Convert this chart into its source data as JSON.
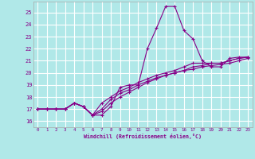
{
  "xlabel": "Windchill (Refroidissement éolien,°C)",
  "bg_color": "#b0e8e8",
  "grid_color": "#ffffff",
  "line_color": "#880088",
  "x_ticks": [
    0,
    1,
    2,
    3,
    4,
    5,
    6,
    7,
    8,
    9,
    10,
    11,
    12,
    13,
    14,
    15,
    16,
    17,
    18,
    19,
    20,
    21,
    22,
    23
  ],
  "y_ticks": [
    16,
    17,
    18,
    19,
    20,
    21,
    22,
    23,
    24,
    25
  ],
  "ylim": [
    15.5,
    25.9
  ],
  "xlim": [
    -0.5,
    23.5
  ],
  "series": [
    [
      17.0,
      17.0,
      17.0,
      17.0,
      17.5,
      17.2,
      16.5,
      16.5,
      17.2,
      18.8,
      19.0,
      19.0,
      22.0,
      23.7,
      25.5,
      25.5,
      23.5,
      22.8,
      21.0,
      20.5,
      20.5,
      21.2,
      21.3,
      21.3
    ],
    [
      17.0,
      17.0,
      17.0,
      17.0,
      17.5,
      17.2,
      16.5,
      17.5,
      18.0,
      18.5,
      18.8,
      19.2,
      19.5,
      19.8,
      20.0,
      20.2,
      20.5,
      20.8,
      20.8,
      20.8,
      20.8,
      21.0,
      21.2,
      21.3
    ],
    [
      17.0,
      17.0,
      17.0,
      17.0,
      17.5,
      17.2,
      16.5,
      17.0,
      17.8,
      18.3,
      18.6,
      19.0,
      19.3,
      19.6,
      19.8,
      20.0,
      20.2,
      20.5,
      20.6,
      20.8,
      20.8,
      21.0,
      21.2,
      21.3
    ],
    [
      17.0,
      17.0,
      17.0,
      17.0,
      17.5,
      17.2,
      16.5,
      16.8,
      17.5,
      18.0,
      18.4,
      18.8,
      19.2,
      19.5,
      19.8,
      20.0,
      20.2,
      20.3,
      20.5,
      20.6,
      20.7,
      20.8,
      21.0,
      21.2
    ]
  ]
}
